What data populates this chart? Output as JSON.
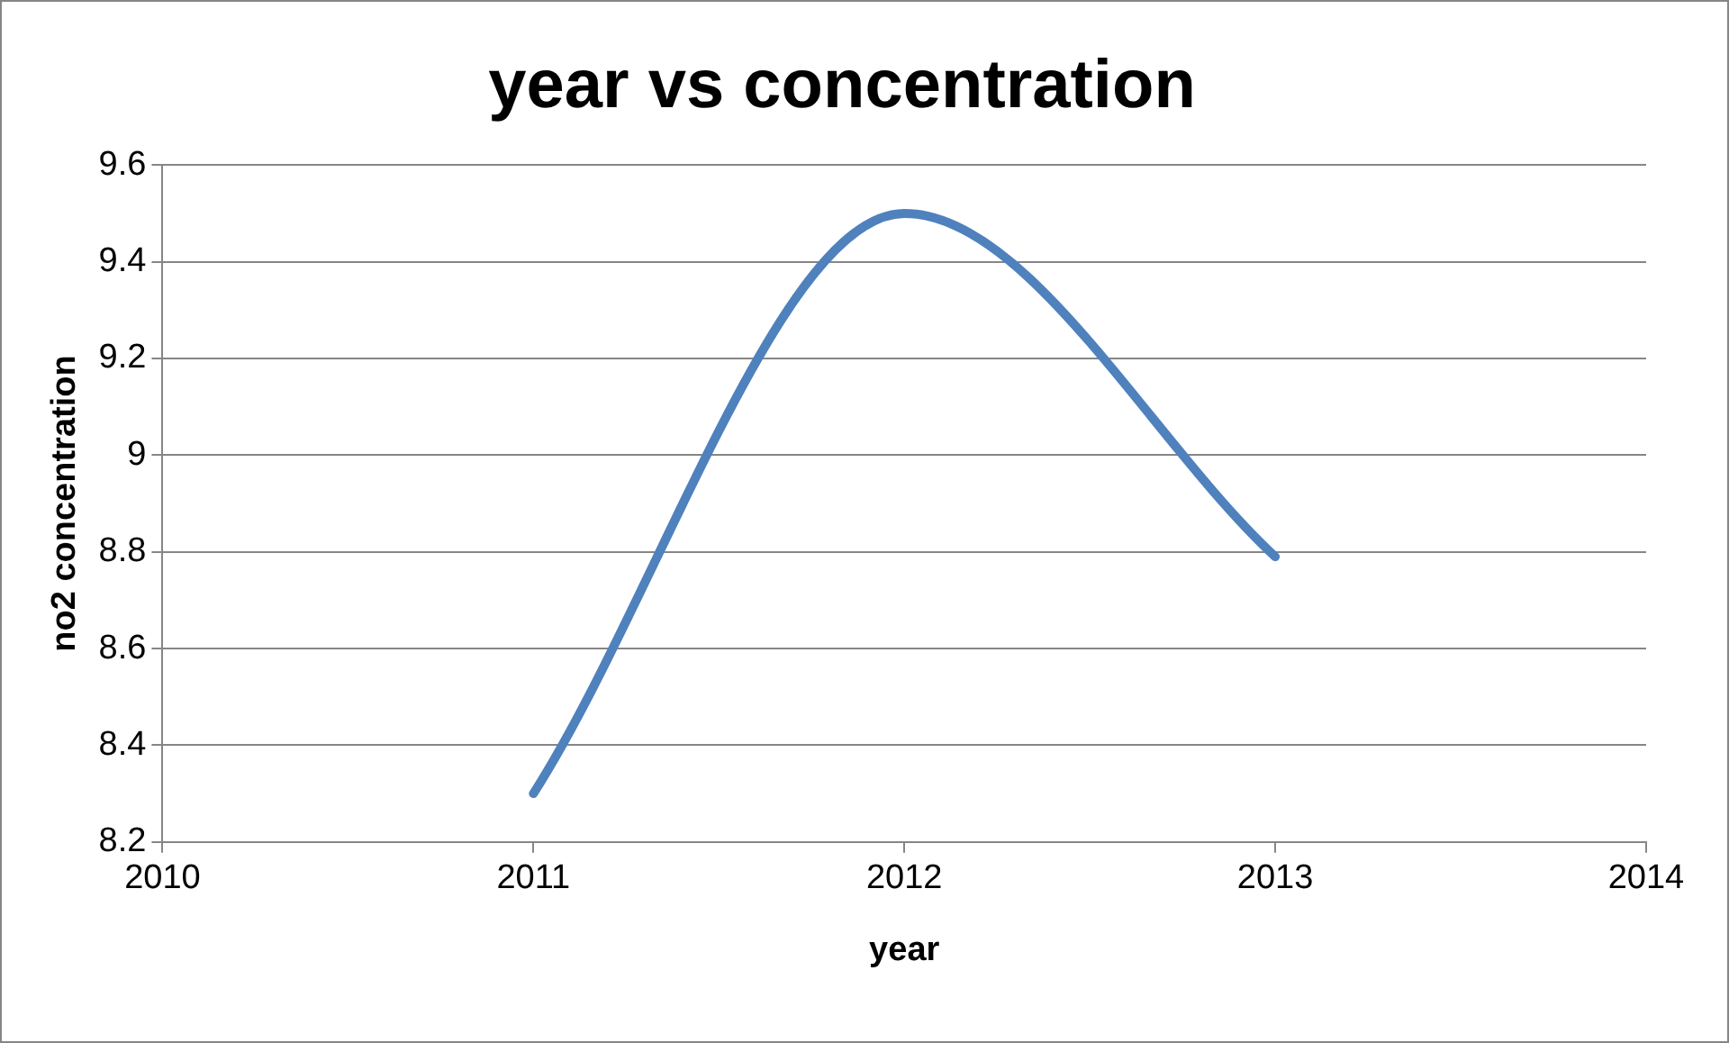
{
  "chart_data": {
    "type": "line",
    "title": "year vs concentration",
    "xlabel": "year",
    "ylabel": "no2 concentration",
    "x": [
      2011,
      2012,
      2013
    ],
    "series": [
      {
        "color": "#4f81bd",
        "values": [
          8.3,
          9.5,
          8.79
        ]
      }
    ],
    "xlim": [
      2010,
      2014
    ],
    "xticks": [
      2010,
      2011,
      2012,
      2013,
      2014
    ],
    "ylim": [
      8.2,
      9.6
    ],
    "yticks": [
      8.2,
      8.4,
      8.6,
      8.8,
      9,
      9.2,
      9.4,
      9.6
    ],
    "grid": "y",
    "legend": false,
    "marker": "none",
    "line_style": "solid"
  }
}
